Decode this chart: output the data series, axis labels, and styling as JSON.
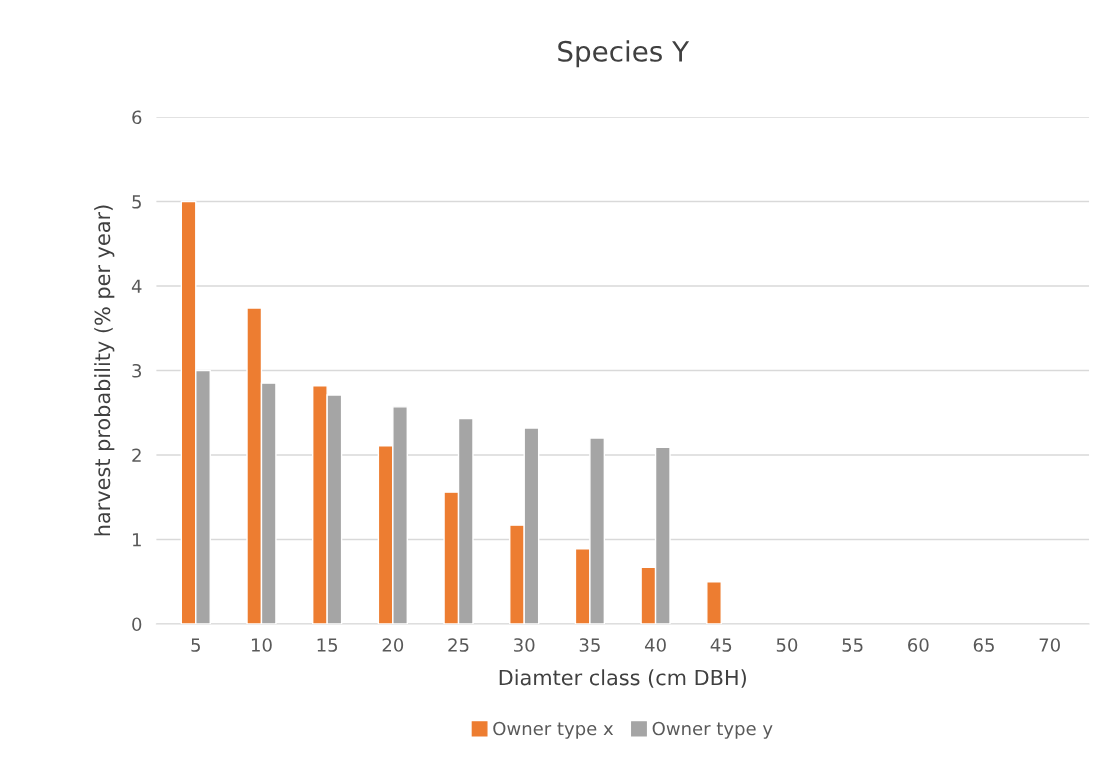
{
  "chart_data": {
    "type": "bar",
    "title": "Species Y",
    "xlabel": "Diamter class (cm DBH)",
    "ylabel": "harvest probability (% per year)",
    "categories": [
      "5",
      "10",
      "15",
      "20",
      "25",
      "30",
      "35",
      "40",
      "45",
      "50",
      "55",
      "60",
      "65",
      "70"
    ],
    "series": [
      {
        "name": "Owner type x",
        "color": "#ed7d31",
        "values": [
          5.0,
          3.74,
          2.82,
          2.11,
          1.56,
          1.17,
          0.89,
          0.67,
          0.5,
          null,
          null,
          null,
          null,
          null
        ]
      },
      {
        "name": "Owner type y",
        "color": "#a5a5a5",
        "values": [
          3.0,
          2.85,
          2.71,
          2.57,
          2.43,
          2.32,
          2.2,
          2.09,
          null,
          null,
          null,
          null,
          null,
          null
        ]
      }
    ],
    "ylim": [
      0,
      6
    ],
    "yticks": [
      0,
      1,
      2,
      3,
      4,
      5,
      6
    ],
    "grid": "y",
    "legend": "bottom"
  }
}
